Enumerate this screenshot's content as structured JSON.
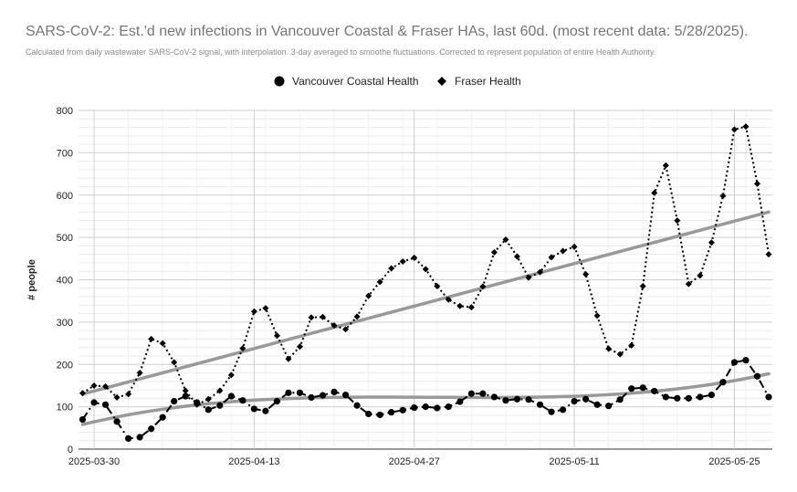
{
  "chart": {
    "title": "SARS-CoV-2: Est.'d new infections in Vancouver Coastal & Fraser HAs, last 60d. (most recent data: 5/28/2025).",
    "subtitle": "Calculated from daily wastewater SARS-CoV-2 signal, with interpolation. 3-day averaged to smoothe fluctuations. Corrected to represent population of entire Health Authority."
  },
  "chart_data": {
    "type": "line",
    "title": "SARS-CoV-2: Est.'d new infections in Vancouver Coastal & Fraser HAs, last 60d. (most recent data: 5/28/2025).",
    "subtitle": "Calculated from daily wastewater SARS-CoV-2 signal, with interpolation. 3-day averaged to smoothe fluctuations. Corrected to represent population of entire Health Authority.",
    "xlabel": "",
    "ylabel": "# people",
    "x_start": "2025-03-29",
    "x_end": "2025-05-28",
    "xticks": [
      "2025-03-30",
      "2025-04-13",
      "2025-04-27",
      "2025-05-11",
      "2025-05-25"
    ],
    "ylim": [
      0,
      800
    ],
    "yticks": [
      0,
      100,
      200,
      300,
      400,
      500,
      600,
      700,
      800
    ],
    "grid": true,
    "legend_position": "top",
    "series": [
      {
        "name": "Vancouver Coastal Health",
        "marker": "circle",
        "color": "#000000",
        "values": [
          70,
          110,
          105,
          65,
          25,
          28,
          48,
          75,
          113,
          125,
          110,
          93,
          103,
          125,
          115,
          95,
          90,
          113,
          133,
          133,
          122,
          127,
          135,
          128,
          103,
          83,
          81,
          87,
          92,
          98,
          100,
          97,
          100,
          112,
          131,
          131,
          123,
          115,
          118,
          117,
          105,
          88,
          93,
          113,
          118,
          105,
          102,
          117,
          143,
          145,
          137,
          123,
          120,
          120,
          123,
          128,
          158,
          205,
          210,
          172,
          123
        ]
      },
      {
        "name": "Fraser Health",
        "marker": "diamond",
        "color": "#000000",
        "values": [
          132,
          150,
          148,
          122,
          130,
          180,
          260,
          250,
          205,
          138,
          105,
          118,
          138,
          175,
          238,
          325,
          333,
          268,
          213,
          242,
          311,
          312,
          292,
          283,
          313,
          362,
          395,
          427,
          443,
          452,
          425,
          385,
          353,
          338,
          335,
          384,
          465,
          495,
          455,
          405,
          418,
          453,
          468,
          478,
          413,
          315,
          237,
          224,
          245,
          385,
          605,
          670,
          540,
          390,
          410,
          488,
          598,
          755,
          762,
          627,
          460
        ]
      },
      {
        "name": "Fraser Health trend",
        "values": [
          130,
          560
        ]
      },
      {
        "name": "Vancouver Coastal Health trend",
        "values": [
          58,
          178
        ]
      }
    ]
  }
}
